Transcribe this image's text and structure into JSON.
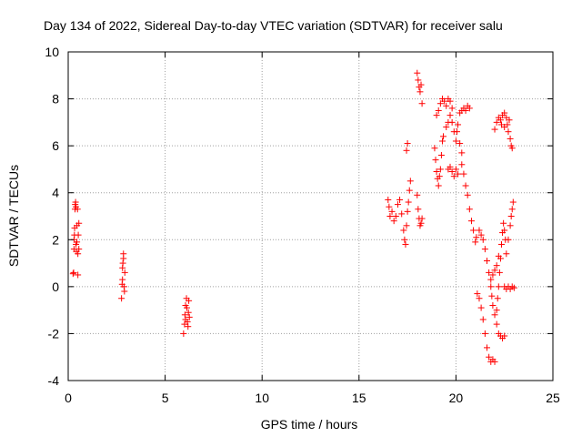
{
  "chart_data": {
    "type": "scatter",
    "title": "Day 134 of 2022, Sidereal Day-to-day VTEC variation (SDTVAR) for receiver salu",
    "xlabel": "GPS time / hours",
    "ylabel": "SDTVAR / TECUs",
    "xlim": [
      0,
      25
    ],
    "ylim": [
      -4,
      10
    ],
    "xticks": [
      0,
      5,
      10,
      15,
      20,
      25
    ],
    "yticks": [
      -4,
      -2,
      0,
      2,
      4,
      6,
      8,
      10
    ],
    "xtick_labels": [
      "0",
      "5",
      "10",
      "15",
      "20",
      "25"
    ],
    "ytick_labels": [
      "-4",
      "-2",
      "0",
      "2",
      "4",
      "6",
      "8",
      "10"
    ],
    "grid": true,
    "marker": "+",
    "color": "#ff0000",
    "series": [
      {
        "name": "SDTVAR",
        "points": [
          [
            0.25,
            0.55
          ],
          [
            0.28,
            0.6
          ],
          [
            0.3,
            1.6
          ],
          [
            0.3,
            2.0
          ],
          [
            0.32,
            2.2
          ],
          [
            0.33,
            2.5
          ],
          [
            0.35,
            3.3
          ],
          [
            0.36,
            3.5
          ],
          [
            0.38,
            3.6
          ],
          [
            0.4,
            3.4
          ],
          [
            0.4,
            1.8
          ],
          [
            0.42,
            1.5
          ],
          [
            0.45,
            1.9
          ],
          [
            0.45,
            2.6
          ],
          [
            0.48,
            3.3
          ],
          [
            0.5,
            1.4
          ],
          [
            0.5,
            0.5
          ],
          [
            0.52,
            2.2
          ],
          [
            0.55,
            2.7
          ],
          [
            0.55,
            1.6
          ],
          [
            2.75,
            -0.5
          ],
          [
            2.78,
            0.1
          ],
          [
            2.8,
            0.3
          ],
          [
            2.8,
            0.8
          ],
          [
            2.82,
            1.0
          ],
          [
            2.85,
            1.2
          ],
          [
            2.85,
            1.4
          ],
          [
            2.88,
            0.0
          ],
          [
            2.9,
            -0.2
          ],
          [
            2.92,
            0.6
          ],
          [
            5.95,
            -2.0
          ],
          [
            6.0,
            -1.6
          ],
          [
            6.02,
            -1.2
          ],
          [
            6.05,
            -0.8
          ],
          [
            6.05,
            -1.4
          ],
          [
            6.1,
            -0.5
          ],
          [
            6.12,
            -0.9
          ],
          [
            6.15,
            -1.5
          ],
          [
            6.18,
            -1.7
          ],
          [
            6.2,
            -1.1
          ],
          [
            6.22,
            -0.6
          ],
          [
            6.25,
            -1.3
          ],
          [
            16.5,
            3.7
          ],
          [
            16.55,
            3.4
          ],
          [
            16.6,
            3.0
          ],
          [
            16.7,
            3.2
          ],
          [
            16.8,
            2.8
          ],
          [
            16.9,
            3.0
          ],
          [
            17.0,
            3.5
          ],
          [
            17.1,
            3.7
          ],
          [
            17.2,
            3.1
          ],
          [
            17.3,
            2.4
          ],
          [
            17.35,
            2.0
          ],
          [
            17.4,
            1.8
          ],
          [
            17.45,
            2.6
          ],
          [
            17.5,
            3.2
          ],
          [
            17.55,
            3.6
          ],
          [
            17.6,
            4.1
          ],
          [
            17.65,
            4.5
          ],
          [
            17.45,
            5.8
          ],
          [
            17.5,
            6.1
          ],
          [
            18.0,
            9.1
          ],
          [
            18.05,
            8.8
          ],
          [
            18.1,
            8.5
          ],
          [
            18.15,
            8.3
          ],
          [
            18.2,
            8.6
          ],
          [
            18.25,
            7.8
          ],
          [
            18.0,
            3.9
          ],
          [
            18.05,
            3.3
          ],
          [
            18.1,
            2.9
          ],
          [
            18.15,
            2.6
          ],
          [
            18.2,
            2.7
          ],
          [
            18.25,
            2.9
          ],
          [
            18.9,
            5.9
          ],
          [
            18.95,
            5.4
          ],
          [
            19.0,
            4.9
          ],
          [
            19.05,
            4.6
          ],
          [
            19.1,
            4.3
          ],
          [
            19.15,
            4.7
          ],
          [
            19.2,
            5.0
          ],
          [
            19.25,
            5.6
          ],
          [
            19.3,
            6.2
          ],
          [
            19.35,
            6.4
          ],
          [
            19.0,
            7.3
          ],
          [
            19.1,
            7.5
          ],
          [
            19.2,
            7.8
          ],
          [
            19.3,
            8.0
          ],
          [
            19.4,
            7.9
          ],
          [
            19.5,
            7.7
          ],
          [
            19.6,
            8.0
          ],
          [
            19.7,
            7.9
          ],
          [
            19.8,
            7.6
          ],
          [
            19.5,
            6.8
          ],
          [
            19.6,
            7.0
          ],
          [
            19.7,
            7.3
          ],
          [
            19.8,
            7.0
          ],
          [
            19.9,
            6.6
          ],
          [
            20.0,
            6.2
          ],
          [
            20.05,
            6.6
          ],
          [
            20.1,
            6.9
          ],
          [
            20.2,
            6.1
          ],
          [
            20.3,
            5.7
          ],
          [
            19.6,
            5.0
          ],
          [
            19.7,
            5.1
          ],
          [
            19.8,
            4.9
          ],
          [
            19.9,
            4.7
          ],
          [
            20.0,
            5.0
          ],
          [
            20.1,
            4.8
          ],
          [
            20.2,
            7.4
          ],
          [
            20.3,
            7.5
          ],
          [
            20.4,
            7.6
          ],
          [
            20.5,
            7.5
          ],
          [
            20.6,
            7.7
          ],
          [
            20.7,
            7.6
          ],
          [
            20.3,
            5.2
          ],
          [
            20.4,
            4.8
          ],
          [
            20.5,
            4.3
          ],
          [
            20.6,
            3.9
          ],
          [
            20.7,
            3.3
          ],
          [
            20.8,
            2.8
          ],
          [
            20.9,
            2.4
          ],
          [
            21.0,
            1.9
          ],
          [
            21.05,
            2.1
          ],
          [
            21.2,
            2.4
          ],
          [
            21.3,
            2.2
          ],
          [
            21.4,
            2.0
          ],
          [
            21.5,
            1.6
          ],
          [
            21.6,
            1.1
          ],
          [
            21.7,
            0.6
          ],
          [
            21.8,
            0.3
          ],
          [
            21.9,
            0.5
          ],
          [
            22.0,
            0.7
          ],
          [
            22.1,
            0.9
          ],
          [
            22.2,
            1.3
          ],
          [
            21.1,
            -0.3
          ],
          [
            21.2,
            -0.5
          ],
          [
            21.3,
            -0.9
          ],
          [
            21.4,
            -1.4
          ],
          [
            21.5,
            -2.0
          ],
          [
            21.6,
            -2.6
          ],
          [
            21.7,
            -3.0
          ],
          [
            21.8,
            -3.2
          ],
          [
            21.9,
            -3.1
          ],
          [
            22.0,
            -3.2
          ],
          [
            21.8,
            0.0
          ],
          [
            21.85,
            -0.4
          ],
          [
            21.9,
            -0.8
          ],
          [
            22.0,
            -1.2
          ],
          [
            22.1,
            -1.6
          ],
          [
            22.2,
            -2.0
          ],
          [
            22.3,
            -2.1
          ],
          [
            22.4,
            -2.2
          ],
          [
            22.5,
            -2.1
          ],
          [
            22.1,
            -1.0
          ],
          [
            22.15,
            -0.5
          ],
          [
            22.2,
            0.0
          ],
          [
            22.25,
            0.6
          ],
          [
            22.3,
            1.2
          ],
          [
            22.35,
            1.8
          ],
          [
            22.4,
            2.3
          ],
          [
            22.45,
            2.7
          ],
          [
            22.5,
            2.4
          ],
          [
            22.55,
            2.0
          ],
          [
            22.5,
            0.0
          ],
          [
            22.6,
            -0.1
          ],
          [
            22.7,
            0.0
          ],
          [
            22.8,
            -0.1
          ],
          [
            22.9,
            0.0
          ],
          [
            23.0,
            -0.05
          ],
          [
            22.6,
            1.4
          ],
          [
            22.7,
            2.0
          ],
          [
            22.8,
            2.6
          ],
          [
            22.85,
            3.0
          ],
          [
            22.9,
            3.3
          ],
          [
            22.95,
            3.6
          ],
          [
            22.0,
            6.7
          ],
          [
            22.1,
            7.0
          ],
          [
            22.2,
            7.2
          ],
          [
            22.3,
            7.1
          ],
          [
            22.4,
            7.3
          ],
          [
            22.5,
            7.4
          ],
          [
            22.6,
            7.2
          ],
          [
            22.65,
            6.9
          ],
          [
            22.7,
            6.6
          ],
          [
            22.8,
            6.3
          ],
          [
            22.85,
            6.0
          ],
          [
            22.9,
            5.9
          ],
          [
            22.75,
            7.1
          ],
          [
            22.5,
            6.8
          ],
          [
            22.35,
            6.9
          ]
        ]
      }
    ]
  }
}
